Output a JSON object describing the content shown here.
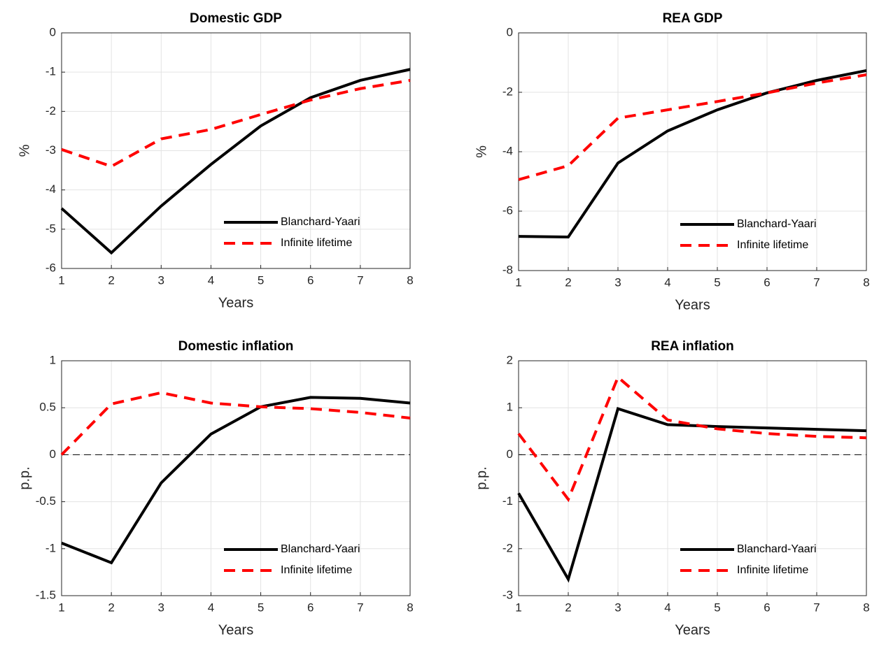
{
  "chart_data": [
    {
      "type": "line",
      "title": "Domestic GDP",
      "xlabel": "Years",
      "ylabel": "%",
      "x": [
        1,
        2,
        3,
        4,
        5,
        6,
        7,
        8
      ],
      "xlim": [
        1,
        8
      ],
      "xticks": [
        1,
        2,
        3,
        4,
        5,
        6,
        7,
        8
      ],
      "ylim": [
        -6,
        0
      ],
      "yticks": [
        -6,
        -5,
        -4,
        -3,
        -2,
        -1,
        0
      ],
      "grid": true,
      "legend": "lower right",
      "zero_line": false,
      "series": [
        {
          "name": "Blanchard-Yaari",
          "color": "#000000",
          "dash": "solid",
          "values": [
            -4.47,
            -5.6,
            -4.41,
            -3.35,
            -2.37,
            -1.65,
            -1.21,
            -0.93
          ]
        },
        {
          "name": "Infinite lifetime",
          "color": "#ff0000",
          "dash": "dashed",
          "values": [
            -2.97,
            -3.4,
            -2.7,
            -2.46,
            -2.08,
            -1.71,
            -1.42,
            -1.21
          ]
        }
      ]
    },
    {
      "type": "line",
      "title": "REA GDP",
      "xlabel": "Years",
      "ylabel": "%",
      "x": [
        1,
        2,
        3,
        4,
        5,
        6,
        7,
        8
      ],
      "xlim": [
        1,
        8
      ],
      "xticks": [
        1,
        2,
        3,
        4,
        5,
        6,
        7,
        8
      ],
      "ylim": [
        -8,
        0
      ],
      "yticks": [
        -8,
        -6,
        -4,
        -2,
        0
      ],
      "grid": true,
      "legend": "lower right",
      "zero_line": false,
      "series": [
        {
          "name": "Blanchard-Yaari",
          "color": "#000000",
          "dash": "solid",
          "values": [
            -6.85,
            -6.87,
            -4.38,
            -3.3,
            -2.59,
            -2.02,
            -1.6,
            -1.27
          ]
        },
        {
          "name": "Infinite lifetime",
          "color": "#ff0000",
          "dash": "dashed",
          "values": [
            -4.94,
            -4.47,
            -2.87,
            -2.59,
            -2.31,
            -2.02,
            -1.69,
            -1.41
          ]
        }
      ]
    },
    {
      "type": "line",
      "title": "Domestic inflation",
      "xlabel": "Years",
      "ylabel": "p.p.",
      "x": [
        1,
        2,
        3,
        4,
        5,
        6,
        7,
        8
      ],
      "xlim": [
        1,
        8
      ],
      "xticks": [
        1,
        2,
        3,
        4,
        5,
        6,
        7,
        8
      ],
      "ylim": [
        -1.5,
        1
      ],
      "yticks": [
        -1.5,
        -1,
        -0.5,
        0,
        0.5,
        1
      ],
      "grid": true,
      "legend": "lower right",
      "zero_line": true,
      "series": [
        {
          "name": "Blanchard-Yaari",
          "color": "#000000",
          "dash": "solid",
          "values": [
            -0.94,
            -1.15,
            -0.3,
            0.22,
            0.51,
            0.61,
            0.6,
            0.55
          ]
        },
        {
          "name": "Infinite lifetime",
          "color": "#ff0000",
          "dash": "dashed",
          "values": [
            0,
            0.54,
            0.66,
            0.55,
            0.51,
            0.49,
            0.45,
            0.39
          ]
        }
      ]
    },
    {
      "type": "line",
      "title": "REA inflation",
      "xlabel": "Years",
      "ylabel": "p.p.",
      "x": [
        1,
        2,
        3,
        4,
        5,
        6,
        7,
        8
      ],
      "xlim": [
        1,
        8
      ],
      "xticks": [
        1,
        2,
        3,
        4,
        5,
        6,
        7,
        8
      ],
      "ylim": [
        -3,
        2
      ],
      "yticks": [
        -3,
        -2,
        -1,
        0,
        1,
        2
      ],
      "grid": true,
      "legend": "lower right",
      "zero_line": true,
      "series": [
        {
          "name": "Blanchard-Yaari",
          "color": "#000000",
          "dash": "solid",
          "values": [
            -0.82,
            -2.65,
            0.98,
            0.64,
            0.6,
            0.57,
            0.54,
            0.51
          ]
        },
        {
          "name": "Infinite lifetime",
          "color": "#ff0000",
          "dash": "dashed",
          "values": [
            0.45,
            -0.95,
            1.65,
            0.74,
            0.55,
            0.45,
            0.39,
            0.36
          ]
        }
      ]
    }
  ]
}
